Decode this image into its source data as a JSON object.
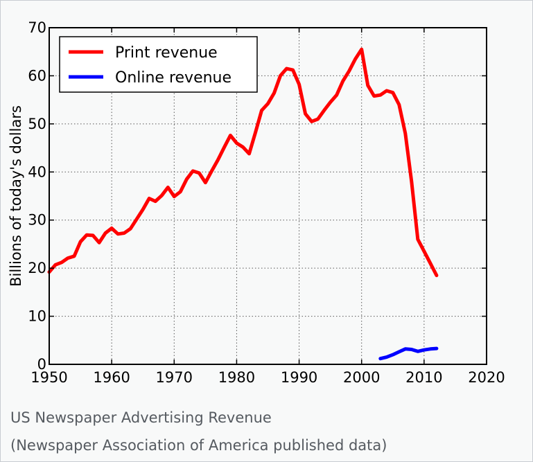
{
  "chart_data": {
    "type": "line",
    "title": "",
    "xlabel": "",
    "ylabel": "Billions of today's dollars",
    "xlim": [
      1950,
      2020
    ],
    "ylim": [
      0,
      70
    ],
    "xticks": [
      "1950",
      "1960",
      "1970",
      "1980",
      "1990",
      "2000",
      "2010",
      "2020"
    ],
    "yticks": [
      "0",
      "10",
      "20",
      "30",
      "40",
      "50",
      "60",
      "70"
    ],
    "grid": true,
    "legend_position": "top-left",
    "colors": {
      "print": "#ff0000",
      "online": "#0000ff"
    },
    "series": [
      {
        "name": "Print revenue",
        "color": "#ff0000",
        "x": [
          1950,
          1951,
          1952,
          1953,
          1954,
          1955,
          1956,
          1957,
          1958,
          1959,
          1960,
          1961,
          1962,
          1963,
          1964,
          1965,
          1966,
          1967,
          1968,
          1969,
          1970,
          1971,
          1972,
          1973,
          1974,
          1975,
          1976,
          1977,
          1978,
          1979,
          1980,
          1981,
          1982,
          1983,
          1984,
          1985,
          1986,
          1987,
          1988,
          1989,
          1990,
          1991,
          1992,
          1993,
          1994,
          1995,
          1996,
          1997,
          1998,
          1999,
          2000,
          2001,
          2002,
          2003,
          2004,
          2005,
          2006,
          2007,
          2008,
          2009,
          2010,
          2011,
          2012
        ],
        "y": [
          19.2,
          20.7,
          21.2,
          22.1,
          22.5,
          25.5,
          26.9,
          26.8,
          25.3,
          27.3,
          28.3,
          27.1,
          27.3,
          28.2,
          30.2,
          32.2,
          34.5,
          33.9,
          35.1,
          36.8,
          34.9,
          35.9,
          38.5,
          40.2,
          39.8,
          37.8,
          40.2,
          42.5,
          45.1,
          47.6,
          46.0,
          45.2,
          43.8,
          48.2,
          52.8,
          54.2,
          56.4,
          60.0,
          61.5,
          61.2,
          58.2,
          52.1,
          50.5,
          51.0,
          52.8,
          54.5,
          56.0,
          58.9,
          61.0,
          63.5,
          65.5,
          58.0,
          55.8,
          56.0,
          56.9,
          56.5,
          54.0,
          48.0,
          38.0,
          26.0,
          23.5,
          21.0,
          18.5
        ]
      },
      {
        "name": "Online revenue",
        "color": "#0000ff",
        "x": [
          2003,
          2004,
          2005,
          2006,
          2007,
          2008,
          2009,
          2010,
          2011,
          2012
        ],
        "y": [
          1.2,
          1.5,
          2.0,
          2.6,
          3.2,
          3.1,
          2.7,
          3.0,
          3.2,
          3.3
        ]
      }
    ]
  },
  "caption": {
    "line1": "US Newspaper Advertising Revenue",
    "line2": "(Newspaper Association of America published data)"
  }
}
